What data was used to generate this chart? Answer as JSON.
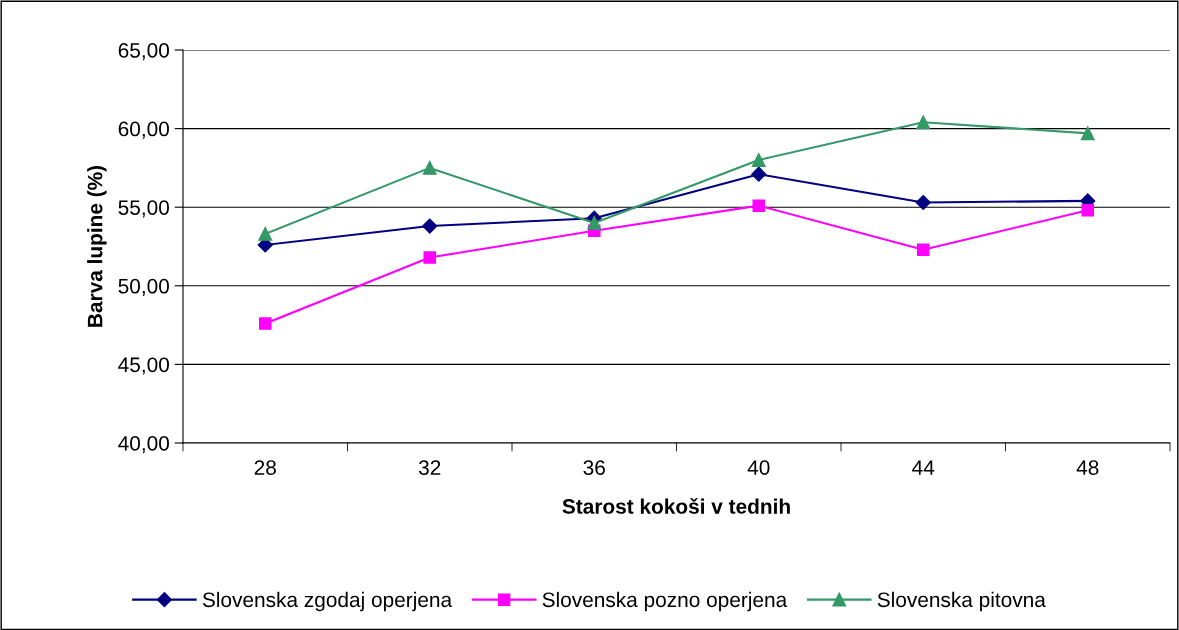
{
  "chart_data": {
    "type": "line",
    "xlabel": "Starost kokoši v tednih",
    "ylabel": "Barva lupine (%)",
    "categories": [
      "28",
      "32",
      "36",
      "40",
      "44",
      "48"
    ],
    "series": [
      {
        "name": "Slovenska zgodaj operjena",
        "color": "#000080",
        "marker": "diamond",
        "values": [
          52.6,
          53.8,
          54.3,
          57.1,
          55.3,
          55.4
        ]
      },
      {
        "name": "Slovenska pozno operjena",
        "color": "#ff00ff",
        "marker": "square",
        "values": [
          47.6,
          51.8,
          53.5,
          55.1,
          52.3,
          54.8
        ]
      },
      {
        "name": "Slovenska pitovna",
        "color": "#339966",
        "marker": "triangle",
        "values": [
          53.3,
          57.5,
          54.0,
          58.0,
          60.4,
          59.7
        ]
      }
    ],
    "ylim": [
      40,
      65
    ],
    "yticks": [
      {
        "value": 40,
        "label": "40,00"
      },
      {
        "value": 45,
        "label": "45,00"
      },
      {
        "value": 50,
        "label": "50,00"
      },
      {
        "value": 55,
        "label": "55,00"
      },
      {
        "value": 60,
        "label": "60,00"
      },
      {
        "value": 65,
        "label": "65,00"
      }
    ],
    "grid": "y",
    "legend": "bottom",
    "line_style": "solid"
  }
}
